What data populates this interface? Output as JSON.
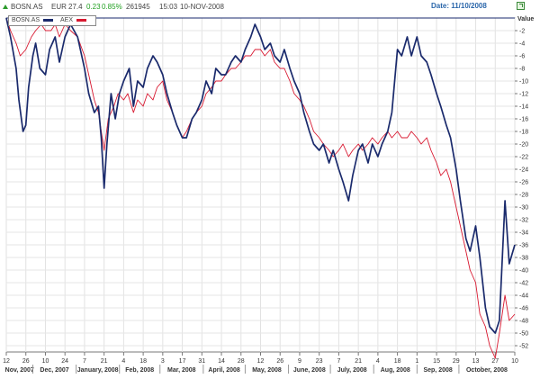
{
  "header": {
    "symbol": "BOSN.AS",
    "currency": "EUR",
    "price": "27.4",
    "change": "0.23",
    "change_pct": "0.85%",
    "volume": "261945",
    "time": "15:03",
    "date": "10-NOV-2008",
    "date_label": "Date: 11/10/2008",
    "arrow_icon": "up-arrow-icon",
    "export_icon": "export-icon",
    "colors": {
      "up": "#22a022",
      "date": "#2a66aa"
    }
  },
  "legend": [
    {
      "name": "BOSN.AS",
      "color": "#1a2a6c"
    },
    {
      "name": "AEX",
      "color": "#d81830"
    }
  ],
  "chart_data": {
    "type": "line",
    "ylabel": "Value",
    "ylim": [
      -53,
      0
    ],
    "yticks": [
      -2,
      -4,
      -6,
      -8,
      -10,
      -12,
      -14,
      -16,
      -18,
      -20,
      -22,
      -24,
      -26,
      -28,
      -30,
      -32,
      -34,
      -36,
      -38,
      -40,
      -42,
      -44,
      -46,
      -48,
      -50,
      -52
    ],
    "grid": true,
    "legend_position": "top-left",
    "xlim": [
      "2007-11-12",
      "2008-11-10"
    ],
    "x_ticks": [
      {
        "date": "2007-11-12",
        "label": "12"
      },
      {
        "date": "2007-11-26",
        "label": "26"
      },
      {
        "date": "2007-12-10",
        "label": "10"
      },
      {
        "date": "2007-12-24",
        "label": "24"
      },
      {
        "date": "2008-01-07",
        "label": "7"
      },
      {
        "date": "2008-01-21",
        "label": "21"
      },
      {
        "date": "2008-02-04",
        "label": "4"
      },
      {
        "date": "2008-02-18",
        "label": "18"
      },
      {
        "date": "2008-03-03",
        "label": "3"
      },
      {
        "date": "2008-03-17",
        "label": "17"
      },
      {
        "date": "2008-03-31",
        "label": "31"
      },
      {
        "date": "2008-04-14",
        "label": "14"
      },
      {
        "date": "2008-04-28",
        "label": "28"
      },
      {
        "date": "2008-05-12",
        "label": "12"
      },
      {
        "date": "2008-05-26",
        "label": "26"
      },
      {
        "date": "2008-06-09",
        "label": "9"
      },
      {
        "date": "2008-06-23",
        "label": "23"
      },
      {
        "date": "2008-07-07",
        "label": "7"
      },
      {
        "date": "2008-07-21",
        "label": "21"
      },
      {
        "date": "2008-08-04",
        "label": "4"
      },
      {
        "date": "2008-08-18",
        "label": "18"
      },
      {
        "date": "2008-09-01",
        "label": "1"
      },
      {
        "date": "2008-09-15",
        "label": "15"
      },
      {
        "date": "2008-09-29",
        "label": "29"
      },
      {
        "date": "2008-10-13",
        "label": "13"
      },
      {
        "date": "2008-10-27",
        "label": "27"
      },
      {
        "date": "2008-11-10",
        "label": "10"
      }
    ],
    "months": [
      {
        "date": "2007-11-01",
        "label": "Nov, 2007"
      },
      {
        "date": "2007-12-01",
        "label": "Dec, 2007"
      },
      {
        "date": "2008-01-01",
        "label": "January, 2008"
      },
      {
        "date": "2008-02-01",
        "label": "Feb, 2008"
      },
      {
        "date": "2008-03-01",
        "label": "Mar, 2008"
      },
      {
        "date": "2008-04-01",
        "label": "April, 2008"
      },
      {
        "date": "2008-05-01",
        "label": "May, 2008"
      },
      {
        "date": "2008-06-01",
        "label": "June, 2008"
      },
      {
        "date": "2008-07-01",
        "label": "July, 2008"
      },
      {
        "date": "2008-08-01",
        "label": "Aug, 2008"
      },
      {
        "date": "2008-09-01",
        "label": "Sep, 2008"
      },
      {
        "date": "2008-10-01",
        "label": "October, 2008"
      }
    ],
    "series": [
      {
        "name": "BOSN.AS",
        "color": "#1a2a6c",
        "points": [
          [
            "2007-11-12",
            0
          ],
          [
            "2007-11-15",
            -3
          ],
          [
            "2007-11-19",
            -8
          ],
          [
            "2007-11-21",
            -13
          ],
          [
            "2007-11-24",
            -18
          ],
          [
            "2007-11-26",
            -17
          ],
          [
            "2007-11-28",
            -11
          ],
          [
            "2007-12-01",
            -6
          ],
          [
            "2007-12-03",
            -4
          ],
          [
            "2007-12-06",
            -8
          ],
          [
            "2007-12-10",
            -9
          ],
          [
            "2007-12-13",
            -5
          ],
          [
            "2007-12-17",
            -3
          ],
          [
            "2007-12-20",
            -7
          ],
          [
            "2007-12-24",
            -3
          ],
          [
            "2007-12-28",
            -1
          ],
          [
            "2008-01-02",
            -3
          ],
          [
            "2008-01-07",
            -8
          ],
          [
            "2008-01-10",
            -12
          ],
          [
            "2008-01-14",
            -15
          ],
          [
            "2008-01-17",
            -14
          ],
          [
            "2008-01-19",
            -19
          ],
          [
            "2008-01-21",
            -27
          ],
          [
            "2008-01-23",
            -20
          ],
          [
            "2008-01-26",
            -12
          ],
          [
            "2008-01-29",
            -16
          ],
          [
            "2008-02-01",
            -12
          ],
          [
            "2008-02-04",
            -10
          ],
          [
            "2008-02-08",
            -8
          ],
          [
            "2008-02-11",
            -14
          ],
          [
            "2008-02-14",
            -10
          ],
          [
            "2008-02-18",
            -11
          ],
          [
            "2008-02-21",
            -8
          ],
          [
            "2008-02-25",
            -6
          ],
          [
            "2008-02-28",
            -7
          ],
          [
            "2008-03-03",
            -9
          ],
          [
            "2008-03-06",
            -12
          ],
          [
            "2008-03-10",
            -15
          ],
          [
            "2008-03-13",
            -17
          ],
          [
            "2008-03-17",
            -19
          ],
          [
            "2008-03-20",
            -19
          ],
          [
            "2008-03-24",
            -16
          ],
          [
            "2008-03-27",
            -15
          ],
          [
            "2008-03-31",
            -13
          ],
          [
            "2008-04-03",
            -10
          ],
          [
            "2008-04-07",
            -12
          ],
          [
            "2008-04-10",
            -8
          ],
          [
            "2008-04-14",
            -9
          ],
          [
            "2008-04-17",
            -9
          ],
          [
            "2008-04-21",
            -7
          ],
          [
            "2008-04-24",
            -6
          ],
          [
            "2008-04-28",
            -7
          ],
          [
            "2008-05-01",
            -5
          ],
          [
            "2008-05-05",
            -3
          ],
          [
            "2008-05-08",
            -1
          ],
          [
            "2008-05-12",
            -3
          ],
          [
            "2008-05-15",
            -5
          ],
          [
            "2008-05-19",
            -4
          ],
          [
            "2008-05-22",
            -6
          ],
          [
            "2008-05-26",
            -7
          ],
          [
            "2008-05-29",
            -5
          ],
          [
            "2008-06-02",
            -8
          ],
          [
            "2008-06-05",
            -10
          ],
          [
            "2008-06-09",
            -12
          ],
          [
            "2008-06-12",
            -15
          ],
          [
            "2008-06-16",
            -18
          ],
          [
            "2008-06-19",
            -20
          ],
          [
            "2008-06-23",
            -21
          ],
          [
            "2008-06-26",
            -20
          ],
          [
            "2008-06-30",
            -23
          ],
          [
            "2008-07-03",
            -21
          ],
          [
            "2008-07-07",
            -24
          ],
          [
            "2008-07-10",
            -26
          ],
          [
            "2008-07-14",
            -29
          ],
          [
            "2008-07-17",
            -25
          ],
          [
            "2008-07-21",
            -21
          ],
          [
            "2008-07-24",
            -20
          ],
          [
            "2008-07-28",
            -23
          ],
          [
            "2008-07-31",
            -20
          ],
          [
            "2008-08-04",
            -22
          ],
          [
            "2008-08-07",
            -20
          ],
          [
            "2008-08-11",
            -18
          ],
          [
            "2008-08-14",
            -15
          ],
          [
            "2008-08-18",
            -5
          ],
          [
            "2008-08-21",
            -6
          ],
          [
            "2008-08-25",
            -3
          ],
          [
            "2008-08-28",
            -6
          ],
          [
            "2008-09-01",
            -3
          ],
          [
            "2008-09-04",
            -6
          ],
          [
            "2008-09-08",
            -7
          ],
          [
            "2008-09-11",
            -9
          ],
          [
            "2008-09-15",
            -12
          ],
          [
            "2008-09-18",
            -14
          ],
          [
            "2008-09-22",
            -17
          ],
          [
            "2008-09-25",
            -19
          ],
          [
            "2008-09-29",
            -24
          ],
          [
            "2008-10-02",
            -29
          ],
          [
            "2008-10-06",
            -35
          ],
          [
            "2008-10-09",
            -37
          ],
          [
            "2008-10-13",
            -33
          ],
          [
            "2008-10-16",
            -38
          ],
          [
            "2008-10-20",
            -46
          ],
          [
            "2008-10-23",
            -49
          ],
          [
            "2008-10-27",
            -50
          ],
          [
            "2008-10-30",
            -48
          ],
          [
            "2008-11-03",
            -29
          ],
          [
            "2008-11-06",
            -39
          ],
          [
            "2008-11-10",
            -36
          ]
        ]
      },
      {
        "name": "AEX",
        "color": "#d81830",
        "points": [
          [
            "2007-11-12",
            0
          ],
          [
            "2007-11-15",
            -2
          ],
          [
            "2007-11-19",
            -4
          ],
          [
            "2007-11-22",
            -6
          ],
          [
            "2007-11-26",
            -5
          ],
          [
            "2007-11-30",
            -3
          ],
          [
            "2007-12-03",
            -2
          ],
          [
            "2007-12-07",
            -1
          ],
          [
            "2007-12-10",
            -2
          ],
          [
            "2007-12-14",
            -2
          ],
          [
            "2007-12-17",
            -1
          ],
          [
            "2007-12-20",
            -3
          ],
          [
            "2007-12-24",
            -1
          ],
          [
            "2007-12-28",
            -2
          ],
          [
            "2008-01-02",
            -3
          ],
          [
            "2008-01-07",
            -6
          ],
          [
            "2008-01-10",
            -9
          ],
          [
            "2008-01-14",
            -13
          ],
          [
            "2008-01-17",
            -15
          ],
          [
            "2008-01-21",
            -21
          ],
          [
            "2008-01-24",
            -16
          ],
          [
            "2008-01-28",
            -14
          ],
          [
            "2008-01-31",
            -12
          ],
          [
            "2008-02-04",
            -13
          ],
          [
            "2008-02-07",
            -12
          ],
          [
            "2008-02-11",
            -15
          ],
          [
            "2008-02-14",
            -13
          ],
          [
            "2008-02-18",
            -14
          ],
          [
            "2008-02-21",
            -12
          ],
          [
            "2008-02-25",
            -13
          ],
          [
            "2008-02-28",
            -11
          ],
          [
            "2008-03-03",
            -10
          ],
          [
            "2008-03-06",
            -13
          ],
          [
            "2008-03-10",
            -15
          ],
          [
            "2008-03-13",
            -17
          ],
          [
            "2008-03-17",
            -19
          ],
          [
            "2008-03-20",
            -18
          ],
          [
            "2008-03-24",
            -16
          ],
          [
            "2008-03-27",
            -15
          ],
          [
            "2008-03-31",
            -14
          ],
          [
            "2008-04-03",
            -12
          ],
          [
            "2008-04-07",
            -11
          ],
          [
            "2008-04-10",
            -10
          ],
          [
            "2008-04-14",
            -10
          ],
          [
            "2008-04-17",
            -9
          ],
          [
            "2008-04-21",
            -8
          ],
          [
            "2008-04-24",
            -8
          ],
          [
            "2008-04-28",
            -7
          ],
          [
            "2008-05-01",
            -6
          ],
          [
            "2008-05-05",
            -6
          ],
          [
            "2008-05-08",
            -5
          ],
          [
            "2008-05-12",
            -5
          ],
          [
            "2008-05-15",
            -6
          ],
          [
            "2008-05-19",
            -5
          ],
          [
            "2008-05-22",
            -7
          ],
          [
            "2008-05-26",
            -8
          ],
          [
            "2008-05-29",
            -8
          ],
          [
            "2008-06-02",
            -10
          ],
          [
            "2008-06-05",
            -12
          ],
          [
            "2008-06-09",
            -13
          ],
          [
            "2008-06-12",
            -14
          ],
          [
            "2008-06-16",
            -16
          ],
          [
            "2008-06-19",
            -18
          ],
          [
            "2008-06-23",
            -19
          ],
          [
            "2008-06-26",
            -20
          ],
          [
            "2008-06-30",
            -21
          ],
          [
            "2008-07-03",
            -22
          ],
          [
            "2008-07-07",
            -21
          ],
          [
            "2008-07-10",
            -20
          ],
          [
            "2008-07-14",
            -22
          ],
          [
            "2008-07-17",
            -21
          ],
          [
            "2008-07-21",
            -20
          ],
          [
            "2008-07-24",
            -21
          ],
          [
            "2008-07-28",
            -20
          ],
          [
            "2008-07-31",
            -19
          ],
          [
            "2008-08-04",
            -20
          ],
          [
            "2008-08-07",
            -19
          ],
          [
            "2008-08-11",
            -18
          ],
          [
            "2008-08-14",
            -19
          ],
          [
            "2008-08-18",
            -18
          ],
          [
            "2008-08-21",
            -19
          ],
          [
            "2008-08-25",
            -19
          ],
          [
            "2008-08-28",
            -18
          ],
          [
            "2008-09-01",
            -19
          ],
          [
            "2008-09-04",
            -20
          ],
          [
            "2008-09-08",
            -19
          ],
          [
            "2008-09-11",
            -21
          ],
          [
            "2008-09-15",
            -23
          ],
          [
            "2008-09-18",
            -25
          ],
          [
            "2008-09-22",
            -24
          ],
          [
            "2008-09-25",
            -26
          ],
          [
            "2008-09-29",
            -30
          ],
          [
            "2008-10-02",
            -33
          ],
          [
            "2008-10-06",
            -37
          ],
          [
            "2008-10-09",
            -40
          ],
          [
            "2008-10-13",
            -42
          ],
          [
            "2008-10-16",
            -47
          ],
          [
            "2008-10-20",
            -49
          ],
          [
            "2008-10-23",
            -52
          ],
          [
            "2008-10-27",
            -54
          ],
          [
            "2008-10-30",
            -50
          ],
          [
            "2008-11-03",
            -44
          ],
          [
            "2008-11-06",
            -48
          ],
          [
            "2008-11-10",
            -47
          ]
        ]
      }
    ]
  }
}
